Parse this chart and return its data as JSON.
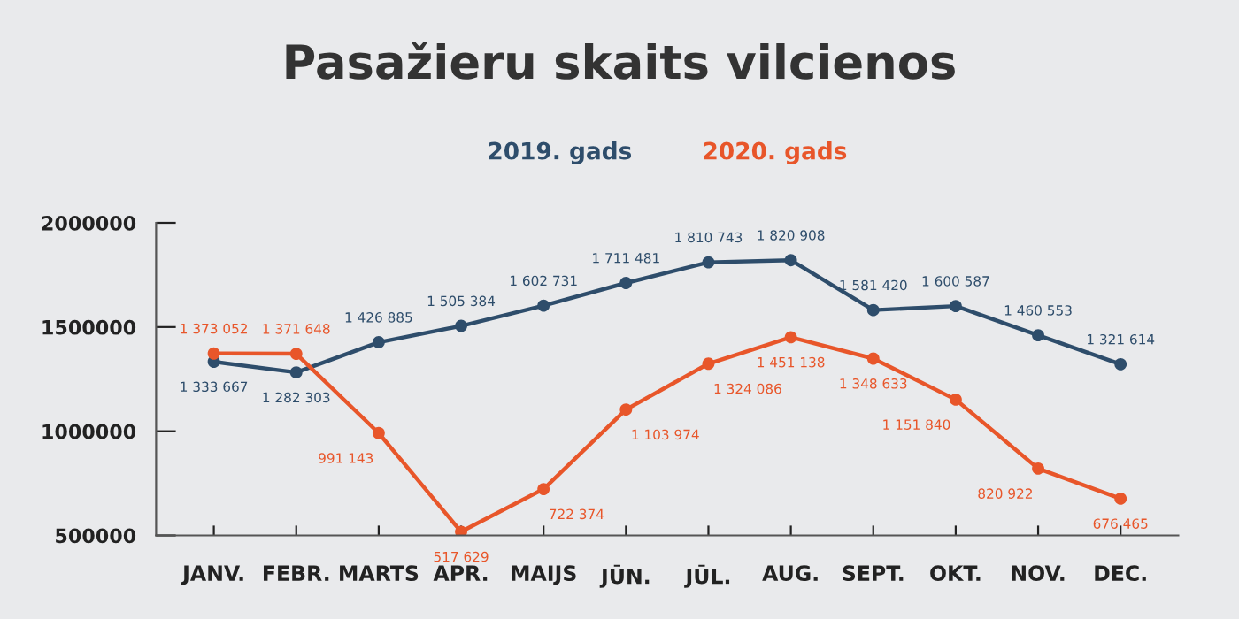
{
  "chart_data": {
    "type": "line",
    "title": "Pasažieru skaits vilcienos",
    "categories": [
      "JANV.",
      "FEBR.",
      "MARTS",
      "APR.",
      "MAIJS",
      "JŪN.",
      "JŪL.",
      "AUG.",
      "SEPT.",
      "OKT.",
      "NOV.",
      "DEC."
    ],
    "series": [
      {
        "name": "2019. gads",
        "color": "#2e4d6b",
        "values": [
          1333667,
          1282303,
          1426885,
          1505384,
          1602731,
          1711481,
          1810743,
          1820908,
          1581420,
          1600587,
          1460553,
          1321614
        ],
        "value_labels": [
          "1 333 667",
          "1 282 303",
          "1 426 885",
          "1 505 384",
          "1 602 731",
          "1 711 481",
          "1 810 743",
          "1 820 908",
          "1 581 420",
          "1 600 587",
          "1 460 553",
          "1 321 614"
        ]
      },
      {
        "name": "2020. gads",
        "color": "#e8562a",
        "values": [
          1373052,
          1371648,
          991143,
          517629,
          722374,
          1103974,
          1324086,
          1451138,
          1348633,
          1151840,
          820922,
          676465
        ],
        "value_labels": [
          "1 373 052",
          "1 371 648",
          "991 143",
          "517 629",
          "722 374",
          "1 103 974",
          "1 324 086",
          "1 451 138",
          "1 348 633",
          "1 151 840",
          "820 922",
          "676 465"
        ]
      }
    ],
    "ylim": [
      500000,
      2000000
    ],
    "yticks": [
      500000,
      1000000,
      1500000,
      2000000
    ],
    "grid": false,
    "legend": "top",
    "marker": "circle",
    "line_style": "solid"
  }
}
